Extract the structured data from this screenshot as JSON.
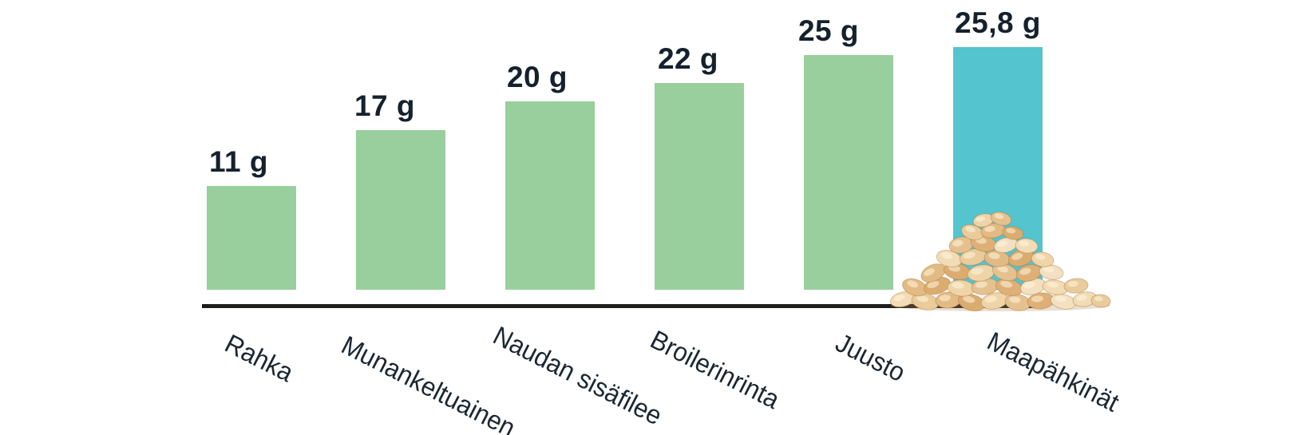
{
  "chart_data": {
    "type": "bar",
    "title": "",
    "categories": [
      "Rahka",
      "Munankeltuainen",
      "Naudan sisäfilee",
      "Broilerinrinta",
      "Juusto",
      "Maapähkinät"
    ],
    "values": [
      11,
      17,
      20,
      22,
      25,
      25.8
    ],
    "value_labels": [
      "11 g",
      "17 g",
      "20 g",
      "22 g",
      "25 g",
      "25,8 g"
    ],
    "unit": "g",
    "xlabel": "",
    "ylabel": "",
    "ylim": [
      0,
      27
    ],
    "grid": false,
    "legend": false,
    "bar_colors": [
      "#99cf9d",
      "#99cf9d",
      "#99cf9d",
      "#99cf9d",
      "#99cf9d",
      "#54c4ce"
    ],
    "highlight_index": 5,
    "colors": {
      "bar_green": "#99cf9d",
      "bar_teal": "#54c4ce",
      "text": "#15212d",
      "axis": "#1d1d1b",
      "background": "#ffffff"
    },
    "decoration": "pile of roasted peanuts at the base of the Maapähkinät bar"
  }
}
